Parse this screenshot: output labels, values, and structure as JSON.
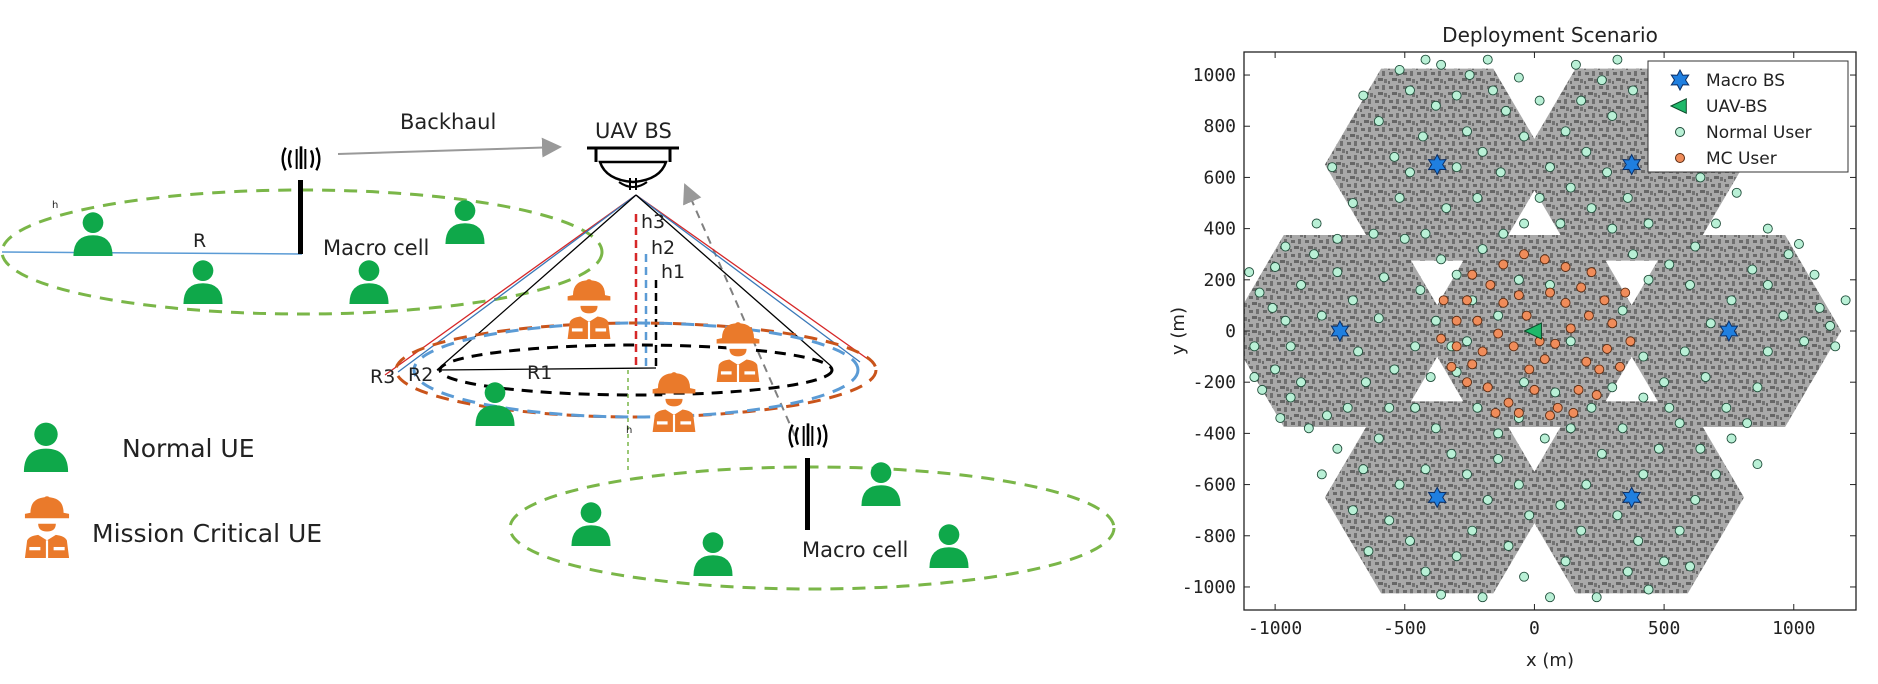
{
  "colors": {
    "green": "#0fa84a",
    "orange": "#ea7a2b",
    "dashed_green": "#7ab648",
    "dashed_orange": "#c9541b",
    "dashed_blue": "#5b9bd5",
    "dashed_black": "#000000",
    "line_red": "#d62728",
    "line_blue": "#3a78b8",
    "hex_fill": "#a9a9a9",
    "hex_dark": "#6a6a6a",
    "normal_user": "#b9f0d6",
    "mc_user": "#f08c5a",
    "macro_bs": "#1f7fe0",
    "uav_bs": "#1fb86a"
  },
  "diagram": {
    "backhaul_label": "Backhaul",
    "uav_label": "UAV BS",
    "macro_cell_label_1": "Macro cell",
    "macro_cell_label_2": "Macro cell",
    "r_label": "R",
    "small_h_1": "h",
    "small_h_2": "h",
    "h1": "h1",
    "h2": "h2",
    "h3": "h3",
    "r1": "R1",
    "r2": "R2",
    "r3": "R3",
    "legend": {
      "normal": "Normal UE",
      "mission": "Mission Critical UE"
    },
    "icons": {
      "tower": "cell-tower-icon",
      "uav": "drone-icon",
      "normal_ue": "person-icon",
      "mc_ue": "firefighter-icon"
    }
  },
  "chart_data": {
    "type": "scatter",
    "title": "Deployment Scenario",
    "xlabel": "x (m)",
    "ylabel": "y (m)",
    "xlim": [
      -1120,
      1240
    ],
    "ylim": [
      -1090,
      1090
    ],
    "xticks": [
      -1000,
      -500,
      0,
      500,
      1000
    ],
    "yticks": [
      -1000,
      -800,
      -600,
      -400,
      -200,
      0,
      200,
      400,
      600,
      800,
      1000
    ],
    "xtick_labels": [
      "-1000",
      "-500",
      "0",
      "500",
      "1000"
    ],
    "ytick_labels": [
      "-1000",
      "-800",
      "-600",
      "-400",
      "-200",
      "0",
      "200",
      "400",
      "600",
      "800",
      "1000"
    ],
    "legend_position": "top-right",
    "grid": false,
    "series": [
      {
        "name": "Macro BS",
        "marker": "hexagram",
        "points": [
          [
            -375,
            650
          ],
          [
            375,
            650
          ],
          [
            -750,
            0
          ],
          [
            750,
            0
          ],
          [
            -375,
            -650
          ],
          [
            375,
            -650
          ]
        ]
      },
      {
        "name": "UAV-BS",
        "marker": "triangle-left",
        "points": [
          [
            0,
            0
          ]
        ]
      },
      {
        "name": "Normal User",
        "marker": "circle",
        "points": [
          [
            -1100,
            230
          ],
          [
            -1060,
            150
          ],
          [
            -1010,
            90
          ],
          [
            -1080,
            -60
          ],
          [
            -1000,
            -150
          ],
          [
            -940,
            -260
          ],
          [
            -1050,
            -230
          ],
          [
            -960,
            40
          ],
          [
            -900,
            180
          ],
          [
            -850,
            300
          ],
          [
            -960,
            330
          ],
          [
            -870,
            -380
          ],
          [
            -800,
            -330
          ],
          [
            -760,
            230
          ],
          [
            -700,
            120
          ],
          [
            -680,
            -80
          ],
          [
            -650,
            -200
          ],
          [
            -720,
            -300
          ],
          [
            -600,
            -420
          ],
          [
            -560,
            -300
          ],
          [
            -540,
            -150
          ],
          [
            -600,
            50
          ],
          [
            -580,
            210
          ],
          [
            -620,
            380
          ],
          [
            -700,
            500
          ],
          [
            -520,
            520
          ],
          [
            -540,
            680
          ],
          [
            -600,
            820
          ],
          [
            -480,
            940
          ],
          [
            -520,
            1020
          ],
          [
            -420,
            1060
          ],
          [
            -380,
            880
          ],
          [
            -430,
            760
          ],
          [
            -300,
            920
          ],
          [
            -250,
            1000
          ],
          [
            -180,
            1060
          ],
          [
            -260,
            780
          ],
          [
            -300,
            640
          ],
          [
            -200,
            700
          ],
          [
            -110,
            860
          ],
          [
            -60,
            990
          ],
          [
            -40,
            760
          ],
          [
            -130,
            620
          ],
          [
            -220,
            520
          ],
          [
            -340,
            480
          ],
          [
            -420,
            380
          ],
          [
            -360,
            280
          ],
          [
            -440,
            160
          ],
          [
            -380,
            40
          ],
          [
            -460,
            -60
          ],
          [
            -400,
            -180
          ],
          [
            -460,
            -300
          ],
          [
            -380,
            -380
          ],
          [
            -320,
            -480
          ],
          [
            -420,
            -540
          ],
          [
            -520,
            -600
          ],
          [
            -560,
            -740
          ],
          [
            -480,
            -820
          ],
          [
            -420,
            -940
          ],
          [
            -360,
            -1030
          ],
          [
            -300,
            -880
          ],
          [
            -240,
            -780
          ],
          [
            -180,
            -660
          ],
          [
            -260,
            -560
          ],
          [
            -140,
            -500
          ],
          [
            -60,
            -600
          ],
          [
            -20,
            -720
          ],
          [
            -100,
            -840
          ],
          [
            -40,
            -960
          ],
          [
            60,
            -1040
          ],
          [
            120,
            -900
          ],
          [
            180,
            -780
          ],
          [
            100,
            -680
          ],
          [
            200,
            -600
          ],
          [
            260,
            -480
          ],
          [
            320,
            -720
          ],
          [
            400,
            -820
          ],
          [
            360,
            -940
          ],
          [
            440,
            -1010
          ],
          [
            500,
            -900
          ],
          [
            560,
            -780
          ],
          [
            620,
            -660
          ],
          [
            700,
            -560
          ],
          [
            640,
            -460
          ],
          [
            560,
            -360
          ],
          [
            480,
            -460
          ],
          [
            420,
            -560
          ],
          [
            340,
            -380
          ],
          [
            420,
            -260
          ],
          [
            500,
            -200
          ],
          [
            580,
            -80
          ],
          [
            660,
            -180
          ],
          [
            740,
            -300
          ],
          [
            820,
            -360
          ],
          [
            860,
            -220
          ],
          [
            900,
            -80
          ],
          [
            960,
            60
          ],
          [
            1040,
            -40
          ],
          [
            1100,
            90
          ],
          [
            1160,
            -60
          ],
          [
            1200,
            120
          ],
          [
            1080,
            220
          ],
          [
            980,
            300
          ],
          [
            900,
            400
          ],
          [
            840,
            240
          ],
          [
            760,
            120
          ],
          [
            680,
            30
          ],
          [
            600,
            180
          ],
          [
            520,
            260
          ],
          [
            620,
            330
          ],
          [
            700,
            420
          ],
          [
            780,
            540
          ],
          [
            640,
            600
          ],
          [
            560,
            720
          ],
          [
            480,
            800
          ],
          [
            560,
            920
          ],
          [
            460,
            1020
          ],
          [
            380,
            940
          ],
          [
            300,
            840
          ],
          [
            260,
            980
          ],
          [
            180,
            900
          ],
          [
            120,
            780
          ],
          [
            200,
            700
          ],
          [
            280,
            620
          ],
          [
            360,
            520
          ],
          [
            440,
            420
          ],
          [
            380,
            300
          ],
          [
            300,
            400
          ],
          [
            220,
            480
          ],
          [
            140,
            560
          ],
          [
            60,
            640
          ],
          [
            20,
            520
          ],
          [
            100,
            420
          ],
          [
            -40,
            420
          ],
          [
            -120,
            380
          ],
          [
            -200,
            320
          ],
          [
            -300,
            220
          ],
          [
            -240,
            120
          ],
          [
            -320,
            -60
          ],
          [
            -300,
            -160
          ],
          [
            -220,
            -300
          ],
          [
            -140,
            -400
          ],
          [
            -60,
            -340
          ],
          [
            40,
            -420
          ],
          [
            140,
            -380
          ],
          [
            220,
            -300
          ],
          [
            300,
            -220
          ],
          [
            420,
            -100
          ],
          [
            340,
            80
          ],
          [
            440,
            200
          ],
          [
            -940,
            -60
          ],
          [
            -820,
            60
          ],
          [
            -760,
            -460
          ],
          [
            -660,
            -540
          ],
          [
            -840,
            420
          ],
          [
            -760,
            360
          ],
          [
            -1000,
            250
          ],
          [
            -900,
            -200
          ],
          [
            -480,
            620
          ],
          [
            -360,
            1040
          ],
          [
            -160,
            940
          ],
          [
            20,
            900
          ],
          [
            160,
            1040
          ],
          [
            320,
            1060
          ],
          [
            -60,
            200
          ],
          [
            60,
            180
          ],
          [
            -140,
            60
          ],
          [
            140,
            -40
          ],
          [
            -40,
            -200
          ],
          [
            80,
            -240
          ],
          [
            -500,
            360
          ],
          [
            -260,
            -40
          ],
          [
            520,
            -300
          ],
          [
            760,
            -420
          ],
          [
            900,
            180
          ],
          [
            1020,
            340
          ],
          [
            1140,
            20
          ],
          [
            600,
            -920
          ],
          [
            240,
            -1040
          ],
          [
            -200,
            -1040
          ],
          [
            -640,
            -860
          ],
          [
            -700,
            -700
          ],
          [
            -1080,
            -180
          ],
          [
            -980,
            -340
          ],
          [
            860,
            -520
          ],
          [
            760,
            760
          ],
          [
            660,
            860
          ],
          [
            -660,
            920
          ],
          [
            -780,
            640
          ],
          [
            -820,
            -560
          ]
        ]
      },
      {
        "name": "MC User",
        "marker": "circle",
        "points": [
          [
            -40,
            300
          ],
          [
            40,
            280
          ],
          [
            -120,
            260
          ],
          [
            120,
            250
          ],
          [
            -240,
            220
          ],
          [
            220,
            230
          ],
          [
            -170,
            180
          ],
          [
            180,
            170
          ],
          [
            -260,
            120
          ],
          [
            270,
            120
          ],
          [
            -300,
            40
          ],
          [
            300,
            30
          ],
          [
            -220,
            40
          ],
          [
            210,
            60
          ],
          [
            -120,
            110
          ],
          [
            120,
            110
          ],
          [
            -60,
            140
          ],
          [
            60,
            150
          ],
          [
            -300,
            -60
          ],
          [
            280,
            -70
          ],
          [
            -240,
            -130
          ],
          [
            250,
            -150
          ],
          [
            -180,
            -220
          ],
          [
            170,
            -230
          ],
          [
            -100,
            -280
          ],
          [
            90,
            -300
          ],
          [
            -20,
            -150
          ],
          [
            40,
            -110
          ],
          [
            -80,
            -60
          ],
          [
            80,
            -50
          ],
          [
            -140,
            -10
          ],
          [
            140,
            10
          ],
          [
            -200,
            -80
          ],
          [
            200,
            -120
          ],
          [
            -30,
            60
          ],
          [
            20,
            -40
          ],
          [
            -320,
            -140
          ],
          [
            330,
            -140
          ],
          [
            -260,
            -200
          ],
          [
            240,
            -250
          ],
          [
            0,
            -230
          ],
          [
            -60,
            -320
          ],
          [
            60,
            -330
          ],
          [
            -150,
            -320
          ],
          [
            150,
            -320
          ],
          [
            -350,
            120
          ],
          [
            350,
            150
          ],
          [
            -360,
            -30
          ],
          [
            370,
            -40
          ]
        ]
      }
    ]
  }
}
